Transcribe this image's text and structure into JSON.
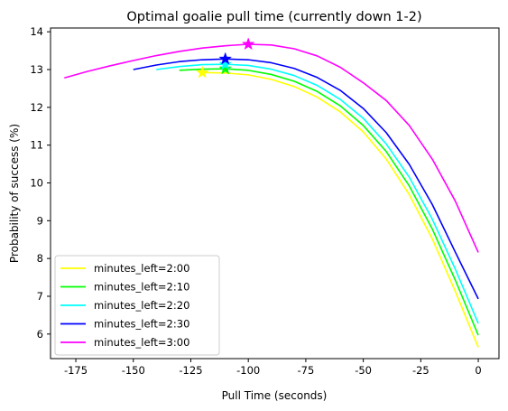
{
  "chart_data": {
    "type": "line",
    "title": "Optimal goalie pull time (currently down 1-2)",
    "xlabel": "Pull Time (seconds)",
    "ylabel": "Probability of success (%)",
    "xlim": [
      -186,
      9
    ],
    "ylim": [
      5.35,
      14.1
    ],
    "xticks": [
      -175,
      -150,
      -125,
      -100,
      -75,
      -50,
      -25,
      0
    ],
    "yticks": [
      6,
      7,
      8,
      9,
      10,
      11,
      12,
      13,
      14
    ],
    "grid": false,
    "legend_position": "lower-left",
    "series": [
      {
        "name": "minutes_left=2:00",
        "color": "#ffff00",
        "x": [
          -120,
          -110,
          -100,
          -90,
          -80,
          -70,
          -60,
          -50,
          -40,
          -30,
          -20,
          -10,
          0
        ],
        "y": [
          12.92,
          12.91,
          12.86,
          12.74,
          12.55,
          12.27,
          11.88,
          11.35,
          10.63,
          9.69,
          8.52,
          7.13,
          5.65
        ],
        "optimum": {
          "x": -120,
          "y": 12.92
        }
      },
      {
        "name": "minutes_left=2:10",
        "color": "#00ff00",
        "x": [
          -130,
          -120,
          -110,
          -100,
          -90,
          -80,
          -70,
          -60,
          -50,
          -40,
          -30,
          -20,
          -10,
          0
        ],
        "y": [
          12.98,
          13.01,
          13.02,
          12.98,
          12.87,
          12.69,
          12.42,
          12.04,
          11.52,
          10.83,
          9.92,
          8.78,
          7.43,
          5.97
        ],
        "optimum": {
          "x": -110,
          "y": 13.02
        }
      },
      {
        "name": "minutes_left=2:20",
        "color": "#00ffff",
        "x": [
          -140,
          -130,
          -120,
          -110,
          -100,
          -90,
          -80,
          -70,
          -60,
          -50,
          -40,
          -30,
          -20,
          -10,
          0
        ],
        "y": [
          13.0,
          13.08,
          13.13,
          13.14,
          13.11,
          13.01,
          12.84,
          12.58,
          12.21,
          11.71,
          11.03,
          10.15,
          9.04,
          7.72,
          6.28
        ],
        "optimum": {
          "x": -110,
          "y": 13.14
        }
      },
      {
        "name": "minutes_left=2:30",
        "color": "#0000ff",
        "x": [
          -150,
          -140,
          -130,
          -120,
          -110,
          -100,
          -90,
          -80,
          -70,
          -60,
          -50,
          -40,
          -30,
          -20,
          -10,
          0
        ],
        "y": [
          13.0,
          13.12,
          13.21,
          13.26,
          13.28,
          13.26,
          13.18,
          13.03,
          12.79,
          12.45,
          11.97,
          11.33,
          10.49,
          9.43,
          8.17,
          6.93
        ],
        "optimum": {
          "x": -110,
          "y": 13.28
        }
      },
      {
        "name": "minutes_left=3:00",
        "color": "#ff00ff",
        "x": [
          -180,
          -170,
          -160,
          -150,
          -140,
          -130,
          -120,
          -110,
          -100,
          -90,
          -80,
          -70,
          -60,
          -50,
          -40,
          -30,
          -20,
          -10,
          0
        ],
        "y": [
          12.78,
          12.95,
          13.1,
          13.24,
          13.37,
          13.48,
          13.57,
          13.63,
          13.67,
          13.65,
          13.55,
          13.36,
          13.06,
          12.65,
          12.18,
          11.52,
          10.63,
          9.52,
          8.16
        ],
        "optimum": {
          "x": -100,
          "y": 13.67
        }
      }
    ]
  }
}
